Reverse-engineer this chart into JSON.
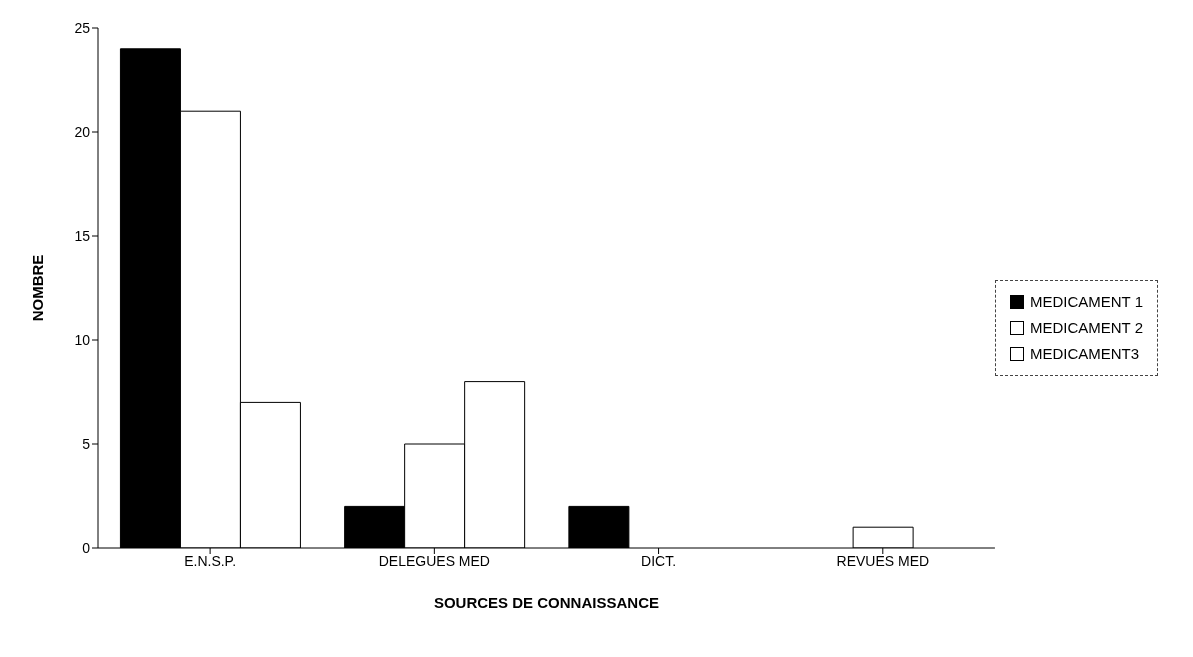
{
  "chart_data": {
    "type": "bar",
    "xlabel": "SOURCES DE CONNAISSANCE",
    "ylabel": "NOMBRE",
    "categories": [
      "E.N.S.P.",
      "DELEGUES MED",
      "DICT.",
      "REVUES MED"
    ],
    "series": [
      {
        "name": "MEDICAMENT 1",
        "color": "#000000",
        "values": [
          24,
          2,
          2,
          0
        ]
      },
      {
        "name": "MEDICAMENT 2",
        "color": "#ffffff",
        "values": [
          21,
          5,
          0,
          1
        ]
      },
      {
        "name": "MEDICAMENT3",
        "color": "#ffffff",
        "values": [
          7,
          8,
          0,
          0
        ]
      }
    ],
    "ylim": [
      0,
      25
    ],
    "yticks": [
      0,
      5,
      10,
      15,
      20,
      25
    ],
    "grid": false,
    "legend": "right"
  }
}
